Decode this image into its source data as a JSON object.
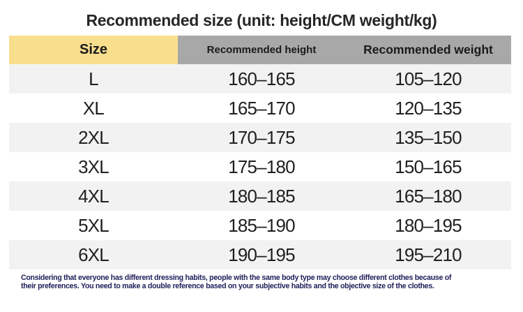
{
  "title": "Recommended size (unit: height/CM weight/kg)",
  "table": {
    "headers": [
      {
        "label": "Size"
      },
      {
        "label": "Recommended height"
      },
      {
        "label": "Recommended weight"
      }
    ],
    "rows": [
      {
        "size": "L",
        "height": "160–165",
        "weight": "105–120"
      },
      {
        "size": "XL",
        "height": "165–170",
        "weight": "120–135"
      },
      {
        "size": "2XL",
        "height": "170–175",
        "weight": "135–150"
      },
      {
        "size": "3XL",
        "height": "175–180",
        "weight": "150–165"
      },
      {
        "size": "4XL",
        "height": "180–185",
        "weight": "165–180"
      },
      {
        "size": "5XL",
        "height": "185–190",
        "weight": "180–195"
      },
      {
        "size": "6XL",
        "height": "190–195",
        "weight": "195–210"
      }
    ]
  },
  "footer": {
    "line1": "Considering that everyone has different dressing habits, people with the same body type may choose different clothes because of",
    "line2": "their preferences. You need to make a double reference based on your subjective habits and the objective size of the clothes."
  },
  "colors": {
    "size_header_yellow": "#F8DE8D",
    "header_gray": "#A8A8A8",
    "row_stripe_gray": "#F2F2F2",
    "body_text": "#1F1F1F",
    "title_text": "#262626",
    "footer_navy": "#1E1E5A"
  }
}
